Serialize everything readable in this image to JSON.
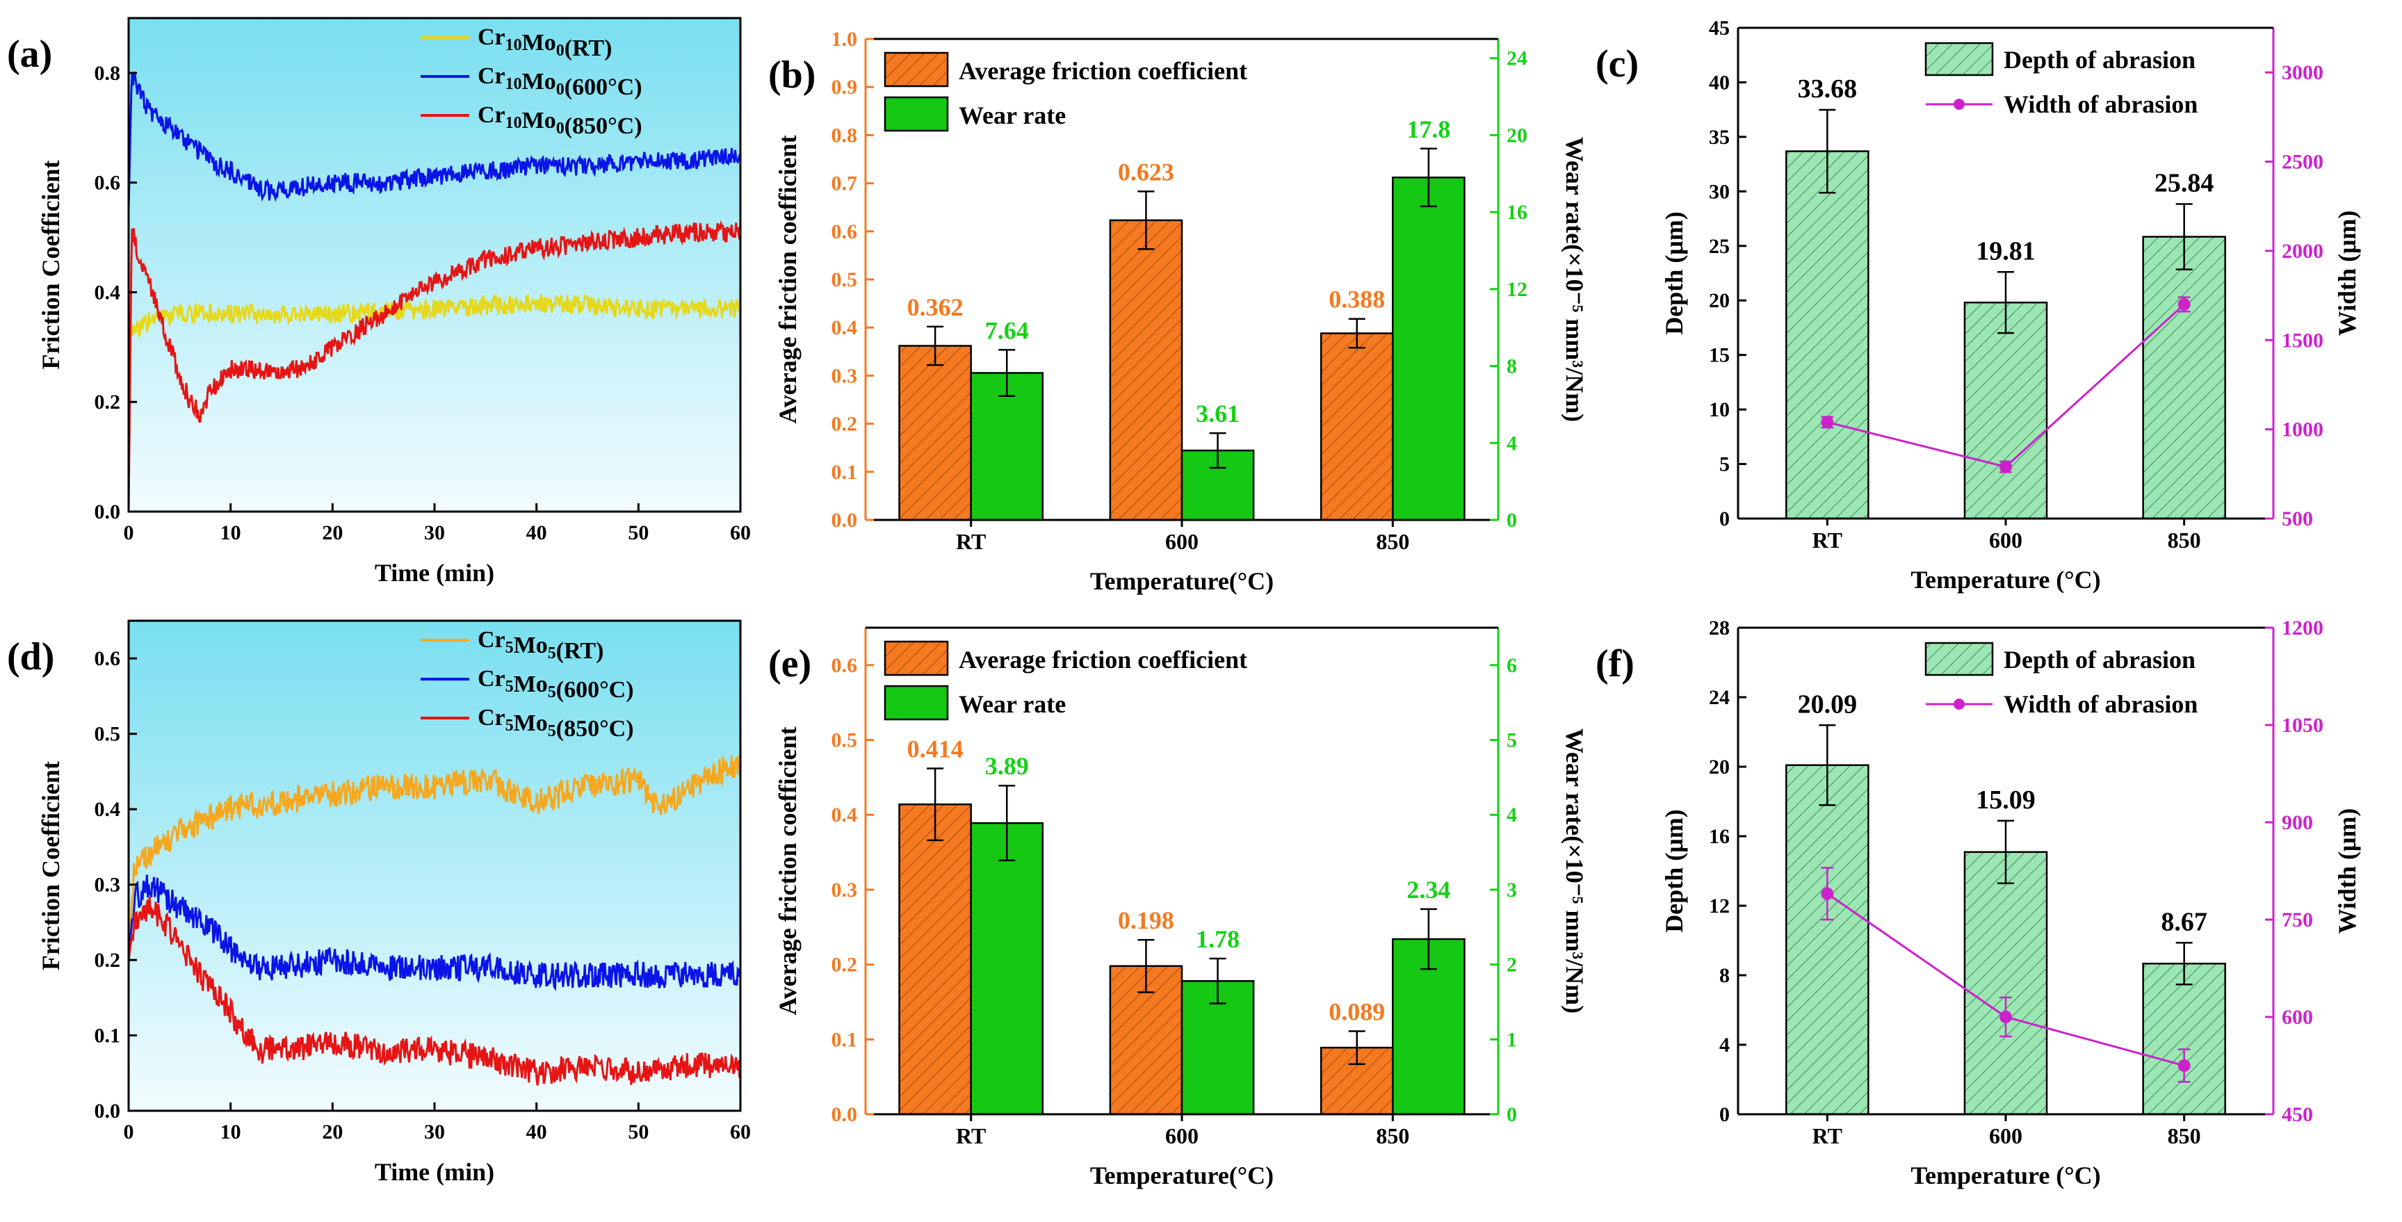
{
  "chart_data": [
    {
      "panel_label": "(a)",
      "type": "line",
      "xlabel": "Time (min)",
      "ylabel": "Friction Coefficient",
      "xlim": [
        0,
        60
      ],
      "ylim": [
        0,
        0.9
      ],
      "xticks": [
        "0",
        "10",
        "20",
        "30",
        "40",
        "50",
        "60"
      ],
      "yticks": [
        "0.0",
        "0.2",
        "0.4",
        "0.6",
        "0.8"
      ],
      "series": [
        {
          "name": "Cr10Mo0(RT)",
          "base": "Cr",
          "sub1": "10",
          "mid": "Mo",
          "sub2": "0",
          "suffix": "(RT)",
          "color": "#e6d81a",
          "x": [
            0,
            0.3,
            1,
            2,
            5,
            10,
            20,
            30,
            40,
            50,
            60
          ],
          "y": [
            0.3,
            0.34,
            0.33,
            0.35,
            0.36,
            0.36,
            0.36,
            0.37,
            0.38,
            0.37,
            0.37
          ]
        },
        {
          "name": "Cr10Mo0(600°C)",
          "base": "Cr",
          "sub1": "10",
          "mid": "Mo",
          "sub2": "0",
          "suffix": "(600°C)",
          "color": "#0a14e6",
          "x": [
            0,
            0.3,
            1,
            2,
            4,
            6,
            8,
            10,
            12,
            14,
            16,
            20,
            25,
            30,
            35,
            40,
            45,
            50,
            55,
            60
          ],
          "y": [
            0.55,
            0.8,
            0.77,
            0.73,
            0.7,
            0.67,
            0.64,
            0.62,
            0.6,
            0.58,
            0.59,
            0.6,
            0.6,
            0.61,
            0.62,
            0.63,
            0.63,
            0.64,
            0.64,
            0.65
          ]
        },
        {
          "name": "Cr10Mo0(850°C)",
          "base": "Cr",
          "sub1": "10",
          "mid": "Mo",
          "sub2": "0",
          "suffix": "(850°C)",
          "color": "#e61414",
          "x": [
            0,
            0.3,
            1,
            2,
            3,
            4,
            5,
            6,
            7,
            8,
            10,
            12,
            15,
            18,
            20,
            25,
            30,
            35,
            40,
            45,
            50,
            55,
            60
          ],
          "y": [
            0.0,
            0.52,
            0.46,
            0.42,
            0.36,
            0.3,
            0.25,
            0.2,
            0.18,
            0.22,
            0.26,
            0.26,
            0.25,
            0.27,
            0.3,
            0.36,
            0.42,
            0.46,
            0.48,
            0.49,
            0.5,
            0.51,
            0.51
          ]
        }
      ]
    },
    {
      "panel_label": "(b)",
      "type": "bar",
      "categories": [
        "RT",
        "600",
        "850"
      ],
      "xlabel": "Temperature(°C)",
      "ylabel_left": "Average friction coefficient",
      "ylabel_right": "Wear rate(×10⁻⁵ mm³/Nm)",
      "ylim_left": [
        0,
        1.0
      ],
      "ylim_right": [
        0,
        25
      ],
      "yticks_left": [
        "0.0",
        "0.1",
        "0.2",
        "0.3",
        "0.4",
        "0.5",
        "0.6",
        "0.7",
        "0.8",
        "0.9",
        "1.0"
      ],
      "yticks_right": [
        "0",
        "4",
        "8",
        "12",
        "16",
        "20",
        "24"
      ],
      "series": [
        {
          "name": "Average friction coefficient",
          "axis": "left",
          "color": "#f47920",
          "values": [
            0.362,
            0.623,
            0.388
          ],
          "errors": [
            0.04,
            0.06,
            0.03
          ],
          "labels": [
            "0.362",
            "0.623",
            "0.388"
          ]
        },
        {
          "name": "Wear rate",
          "axis": "right",
          "color": "#14c814",
          "values": [
            7.64,
            3.61,
            17.8
          ],
          "errors": [
            1.2,
            0.9,
            1.5
          ],
          "labels": [
            "7.64",
            "3.61",
            "17.8"
          ]
        }
      ]
    },
    {
      "panel_label": "(c)",
      "type": "bar",
      "categories": [
        "RT",
        "600",
        "850"
      ],
      "xlabel": "Temperature (°C)",
      "ylabel_left": "Depth (μm)",
      "ylabel_right": "Width (μm)",
      "ylim_left": [
        0,
        45
      ],
      "ylim_right": [
        500,
        3250
      ],
      "yticks_left": [
        "0",
        "5",
        "10",
        "15",
        "20",
        "25",
        "30",
        "35",
        "40",
        "45"
      ],
      "yticks_right": [
        "500",
        "1000",
        "1500",
        "2000",
        "2500",
        "3000"
      ],
      "bar": {
        "name": "Depth of abrasion",
        "values": [
          33.68,
          19.81,
          25.84
        ],
        "errors": [
          3.8,
          2.8,
          3.0
        ],
        "labels": [
          "33.68",
          "19.81",
          "25.84"
        ],
        "color": "#9ce6b4"
      },
      "line": {
        "name": "Width of abrasion",
        "values": [
          1040,
          790,
          1700
        ],
        "errors": [
          30,
          30,
          40
        ],
        "color": "#cc22cc"
      }
    },
    {
      "panel_label": "(d)",
      "type": "line",
      "xlabel": "Time (min)",
      "ylabel": "Friction Coefficient",
      "xlim": [
        0,
        60
      ],
      "ylim": [
        0,
        0.65
      ],
      "xticks": [
        "0",
        "10",
        "20",
        "30",
        "40",
        "50",
        "60"
      ],
      "yticks": [
        "0.0",
        "0.1",
        "0.2",
        "0.3",
        "0.4",
        "0.5",
        "0.6"
      ],
      "series": [
        {
          "name": "Cr5Mo5(RT)",
          "base": "Cr",
          "sub1": "5",
          "mid": "Mo",
          "sub2": "5",
          "suffix": "(RT)",
          "color": "#f5a81e",
          "x": [
            0,
            0.5,
            2,
            5,
            10,
            15,
            20,
            25,
            30,
            35,
            40,
            45,
            50,
            52,
            55,
            58,
            60
          ],
          "y": [
            0.2,
            0.32,
            0.34,
            0.37,
            0.4,
            0.41,
            0.42,
            0.43,
            0.43,
            0.44,
            0.41,
            0.43,
            0.44,
            0.4,
            0.43,
            0.45,
            0.46
          ]
        },
        {
          "name": "Cr5Mo5(600°C)",
          "base": "Cr",
          "sub1": "5",
          "mid": "Mo",
          "sub2": "5",
          "suffix": "(600°C)",
          "color": "#0a14e6",
          "x": [
            0,
            0.5,
            2,
            3,
            5,
            7,
            9,
            11,
            13,
            15,
            20,
            25,
            30,
            35,
            40,
            45,
            50,
            55,
            60
          ],
          "y": [
            0.2,
            0.28,
            0.3,
            0.29,
            0.27,
            0.25,
            0.23,
            0.2,
            0.19,
            0.19,
            0.2,
            0.19,
            0.19,
            0.19,
            0.18,
            0.18,
            0.18,
            0.18,
            0.18
          ]
        },
        {
          "name": "Cr5Mo5(850°C)",
          "base": "Cr",
          "sub1": "5",
          "mid": "Mo",
          "sub2": "5",
          "suffix": "(850°C)",
          "color": "#e61414",
          "x": [
            0,
            0.5,
            2,
            3,
            5,
            7,
            9,
            11,
            13,
            15,
            20,
            25,
            30,
            35,
            40,
            45,
            50,
            55,
            60
          ],
          "y": [
            0.2,
            0.25,
            0.27,
            0.26,
            0.22,
            0.18,
            0.15,
            0.11,
            0.08,
            0.08,
            0.09,
            0.08,
            0.08,
            0.07,
            0.05,
            0.06,
            0.05,
            0.06,
            0.06
          ]
        }
      ]
    },
    {
      "panel_label": "(e)",
      "type": "bar",
      "categories": [
        "RT",
        "600",
        "850"
      ],
      "xlabel": "Temperature(°C)",
      "ylabel_left": "Average friction coefficient",
      "ylabel_right": "Wear rate(×10⁻⁵ mm³/Nm)",
      "ylim_left": [
        0,
        0.65
      ],
      "ylim_right": [
        0,
        6.5
      ],
      "yticks_left": [
        "0.0",
        "0.1",
        "0.2",
        "0.3",
        "0.4",
        "0.5",
        "0.6"
      ],
      "yticks_right": [
        "0",
        "1",
        "2",
        "3",
        "4",
        "5",
        "6"
      ],
      "series": [
        {
          "name": "Average friction coefficient",
          "axis": "left",
          "color": "#f47920",
          "values": [
            0.414,
            0.198,
            0.089
          ],
          "errors": [
            0.048,
            0.035,
            0.022
          ],
          "labels": [
            "0.414",
            "0.198",
            "0.089"
          ]
        },
        {
          "name": "Wear rate",
          "axis": "right",
          "color": "#14c814",
          "values": [
            3.89,
            1.78,
            2.34
          ],
          "errors": [
            0.5,
            0.3,
            0.4
          ],
          "labels": [
            "3.89",
            "1.78",
            "2.34"
          ]
        }
      ]
    },
    {
      "panel_label": "(f)",
      "type": "bar",
      "categories": [
        "RT",
        "600",
        "850"
      ],
      "xlabel": "Temperature (°C)",
      "ylabel_left": "Depth (μm)",
      "ylabel_right": "Width (μm)",
      "ylim_left": [
        0,
        28
      ],
      "ylim_right": [
        450,
        1200
      ],
      "yticks_left": [
        "0",
        "4",
        "8",
        "12",
        "16",
        "20",
        "24",
        "28"
      ],
      "yticks_right": [
        "450",
        "600",
        "750",
        "900",
        "1050",
        "1200"
      ],
      "bar": {
        "name": "Depth of abrasion",
        "values": [
          20.09,
          15.09,
          8.67
        ],
        "errors": [
          2.3,
          1.8,
          1.2
        ],
        "labels": [
          "20.09",
          "15.09",
          "8.67"
        ],
        "color": "#9ce6b4"
      },
      "line": {
        "name": "Width of abrasion",
        "values": [
          790,
          600,
          525
        ],
        "errors": [
          40,
          30,
          25
        ],
        "color": "#cc22cc"
      }
    }
  ]
}
